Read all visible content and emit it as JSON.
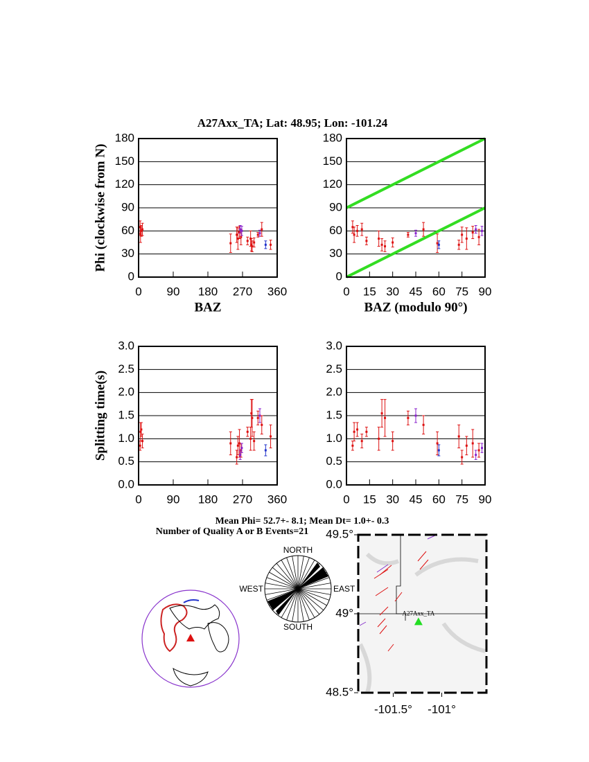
{
  "title": "A27Axx_TA; Lat:  48.95;  Lon: -101.24",
  "chart_data": [
    {
      "type": "errorbar",
      "ylabel": "Phi (clockwise from N)",
      "xlabel": "BAZ",
      "xlim": [
        0,
        360
      ],
      "xticks": [
        0,
        90,
        180,
        270,
        360
      ],
      "ylim": [
        0,
        180
      ],
      "yticks": [
        0,
        30,
        60,
        90,
        120,
        150,
        180
      ],
      "grid": true,
      "x": [
        4,
        5,
        7,
        10,
        239,
        255,
        258,
        262,
        266,
        268,
        283,
        291,
        293,
        295,
        310,
        315,
        320,
        330,
        343,
        264,
        300
      ],
      "values": [
        65,
        55,
        60,
        62,
        44,
        55,
        50,
        58,
        52,
        60,
        47,
        50,
        42,
        40,
        55,
        57,
        62,
        42,
        42,
        62,
        45
      ],
      "errors": [
        8,
        10,
        7,
        8,
        12,
        10,
        14,
        8,
        10,
        6,
        5,
        10,
        8,
        7,
        3,
        4,
        9,
        5,
        6,
        5,
        6
      ],
      "colors": [
        "#dd1111",
        "#dd1111",
        "#dd1111",
        "#dd1111",
        "#dd1111",
        "#dd1111",
        "#dd1111",
        "#dd1111",
        "#dd1111",
        "#8822cc",
        "#dd1111",
        "#dd1111",
        "#dd1111",
        "#dd1111",
        "#dd1111",
        "#8822cc",
        "#dd1111",
        "#2233cc",
        "#dd1111",
        "#8822cc",
        "#dd1111"
      ]
    },
    {
      "type": "errorbar",
      "xlabel": "BAZ (modulo 90°)",
      "xlim": [
        0,
        90
      ],
      "xticks": [
        0,
        15,
        30,
        45,
        60,
        75,
        90
      ],
      "ylim": [
        0,
        180
      ],
      "yticks": [
        0,
        30,
        60,
        90,
        120,
        150,
        180
      ],
      "grid": true,
      "x": [
        4,
        5,
        7,
        10,
        59,
        75,
        78,
        82,
        86,
        88,
        13,
        21,
        23,
        25,
        40,
        45,
        50,
        60,
        73,
        84,
        30
      ],
      "values": [
        65,
        55,
        60,
        62,
        44,
        55,
        50,
        58,
        52,
        60,
        47,
        50,
        42,
        40,
        55,
        57,
        62,
        42,
        42,
        62,
        45
      ],
      "errors": [
        8,
        10,
        7,
        8,
        12,
        10,
        14,
        8,
        10,
        6,
        5,
        10,
        8,
        7,
        3,
        4,
        9,
        5,
        6,
        5,
        6
      ],
      "colors": [
        "#dd1111",
        "#dd1111",
        "#dd1111",
        "#dd1111",
        "#dd1111",
        "#dd1111",
        "#dd1111",
        "#dd1111",
        "#dd1111",
        "#8822cc",
        "#dd1111",
        "#dd1111",
        "#dd1111",
        "#dd1111",
        "#dd1111",
        "#8822cc",
        "#dd1111",
        "#2233cc",
        "#dd1111",
        "#8822cc",
        "#dd1111"
      ],
      "lines": [
        {
          "color": "#33dd22",
          "x": [
            0,
            90
          ],
          "values": [
            0,
            90
          ]
        },
        {
          "color": "#33dd22",
          "x": [
            0,
            90
          ],
          "values": [
            90,
            180
          ]
        }
      ]
    },
    {
      "type": "errorbar",
      "ylabel": "Splitting time(s)",
      "xlim": [
        0,
        360
      ],
      "xticks": [
        0,
        90,
        180,
        270,
        360
      ],
      "ylim": [
        0,
        3
      ],
      "yticks": [
        {
          "value": 0,
          "label": "0.0"
        },
        0.5,
        {
          "value": 1,
          "label": "1.0"
        },
        1.5,
        {
          "value": 2,
          "label": "2.0"
        },
        2.5,
        {
          "value": 3,
          "label": "3.0"
        }
      ],
      "grid": true,
      "x": [
        4,
        5,
        7,
        10,
        239,
        255,
        258,
        262,
        266,
        268,
        283,
        291,
        293,
        295,
        310,
        315,
        320,
        330,
        343,
        264,
        300
      ],
      "values": [
        0.85,
        1.15,
        1.2,
        0.95,
        0.9,
        0.6,
        0.85,
        0.9,
        0.75,
        0.8,
        1.15,
        1.0,
        1.55,
        1.45,
        1.45,
        1.5,
        1.3,
        0.75,
        1.05,
        0.65,
        0.95
      ],
      "errors": [
        0.1,
        0.2,
        0.15,
        0.15,
        0.25,
        0.15,
        0.2,
        0.3,
        0.15,
        0.1,
        0.1,
        0.25,
        0.3,
        0.4,
        0.15,
        0.15,
        0.2,
        0.12,
        0.25,
        0.1,
        0.2
      ],
      "colors": [
        "#dd1111",
        "#dd1111",
        "#dd1111",
        "#dd1111",
        "#dd1111",
        "#dd1111",
        "#dd1111",
        "#dd1111",
        "#dd1111",
        "#8822cc",
        "#dd1111",
        "#dd1111",
        "#dd1111",
        "#dd1111",
        "#dd1111",
        "#8822cc",
        "#dd1111",
        "#2233cc",
        "#dd1111",
        "#8822cc",
        "#dd1111"
      ]
    },
    {
      "type": "errorbar",
      "xlim": [
        0,
        90
      ],
      "xticks": [
        0,
        15,
        30,
        45,
        60,
        75,
        90
      ],
      "ylim": [
        0,
        3
      ],
      "yticks": [
        {
          "value": 0,
          "label": "0.0"
        },
        0.5,
        {
          "value": 1,
          "label": "1.0"
        },
        1.5,
        {
          "value": 2,
          "label": "2.0"
        },
        2.5,
        {
          "value": 3,
          "label": "3.0"
        }
      ],
      "grid": true,
      "x": [
        4,
        5,
        7,
        10,
        59,
        75,
        78,
        82,
        86,
        88,
        13,
        21,
        23,
        25,
        40,
        45,
        50,
        60,
        73,
        84,
        30
      ],
      "values": [
        0.85,
        1.15,
        1.2,
        0.95,
        0.9,
        0.6,
        0.85,
        0.9,
        0.75,
        0.8,
        1.15,
        1.0,
        1.55,
        1.45,
        1.45,
        1.5,
        1.3,
        0.75,
        1.05,
        0.65,
        0.95
      ],
      "errors": [
        0.1,
        0.2,
        0.15,
        0.15,
        0.25,
        0.15,
        0.2,
        0.3,
        0.15,
        0.1,
        0.1,
        0.25,
        0.3,
        0.4,
        0.15,
        0.15,
        0.2,
        0.12,
        0.25,
        0.1,
        0.2
      ],
      "colors": [
        "#dd1111",
        "#dd1111",
        "#dd1111",
        "#dd1111",
        "#dd1111",
        "#dd1111",
        "#dd1111",
        "#dd1111",
        "#dd1111",
        "#8822cc",
        "#dd1111",
        "#dd1111",
        "#dd1111",
        "#dd1111",
        "#dd1111",
        "#8822cc",
        "#dd1111",
        "#2233cc",
        "#dd1111",
        "#8822cc",
        "#dd1111"
      ]
    }
  ],
  "summary": {
    "mean": "Mean Phi= 52.7+-  8.1; Mean Dt=  1.0+-  0.3",
    "count": "Number of Quality A or B Events=21"
  },
  "rose": {
    "north": "NORTH",
    "south": "SOUTH",
    "west": "WEST",
    "east": "EAST"
  },
  "map": {
    "xlim": [
      -101.86,
      -100.54
    ],
    "ylim": [
      48.5,
      49.5
    ],
    "xticks": [
      {
        "value": -101.5,
        "label": "-101.5°"
      },
      {
        "value": -101,
        "label": "-101°"
      }
    ],
    "yticks": [
      {
        "value": 48.5,
        "label": "48.5°"
      },
      {
        "value": 49,
        "label": "49°"
      },
      {
        "value": 49.5,
        "label": "49.5°"
      }
    ],
    "station": {
      "name": "A27Axx_TA",
      "lon": -101.24,
      "lat": 48.95,
      "color": "#22dd22"
    }
  }
}
